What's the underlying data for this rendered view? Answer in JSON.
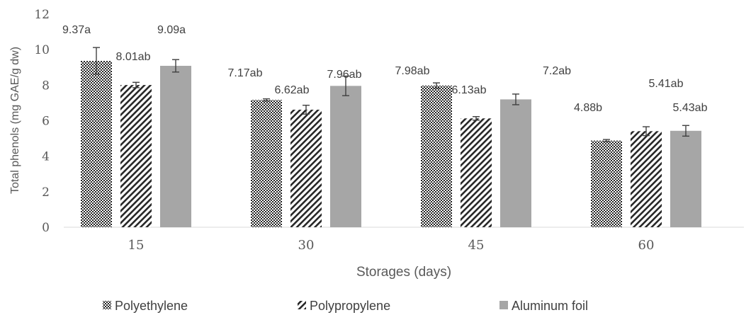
{
  "chart_data": {
    "type": "bar",
    "title": "",
    "xlabel": "Storages (days)",
    "ylabel": "Total phenols (mg GAE/g dw)",
    "ylim": [
      0,
      12
    ],
    "yticks": [
      0,
      2,
      4,
      6,
      8,
      10,
      12
    ],
    "categories": [
      "15",
      "30",
      "45",
      "60"
    ],
    "series": [
      {
        "name": "Polyethylene",
        "pattern": "checker",
        "color": "#262626",
        "values": [
          9.37,
          7.17,
          7.98,
          4.88
        ],
        "errors": [
          0.75,
          0.06,
          0.15,
          0.06
        ],
        "labels": [
          "9.37a",
          "7.17ab",
          "7.98ab",
          "4.88b"
        ]
      },
      {
        "name": "Polypropylene",
        "pattern": "diagonal",
        "color": "#262626",
        "values": [
          8.01,
          6.62,
          6.13,
          5.41
        ],
        "errors": [
          0.15,
          0.25,
          0.1,
          0.25
        ],
        "labels": [
          "8.01ab",
          "6.62ab",
          "6.13ab",
          "5.41ab"
        ]
      },
      {
        "name": "Aluminum foil",
        "pattern": "solid",
        "color": "#a6a6a6",
        "values": [
          9.09,
          7.96,
          7.2,
          5.43
        ],
        "errors": [
          0.35,
          0.55,
          0.3,
          0.3
        ],
        "labels": [
          "9.09a",
          "7.96ab",
          "7.2ab",
          "5.43ab"
        ]
      }
    ],
    "legend_position": "bottom",
    "grid": false
  }
}
